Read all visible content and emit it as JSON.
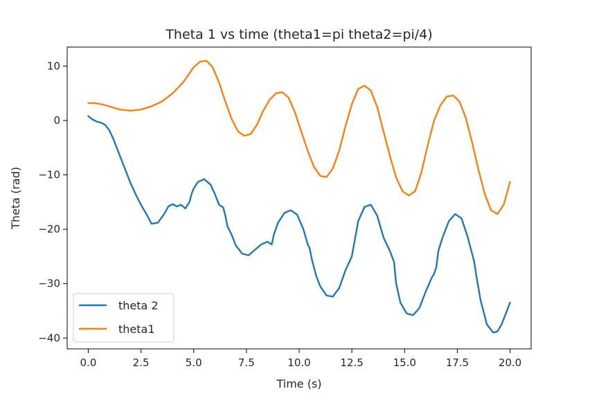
{
  "chart_data": {
    "type": "line",
    "title": "Theta 1 vs time (theta1=pi theta2=pi/4)",
    "xlabel": "Time (s)",
    "ylabel": "Theta  (rad)",
    "xlim": [
      -1.0,
      21.0
    ],
    "ylim": [
      -42.0,
      13.5
    ],
    "xticks": [
      0.0,
      2.5,
      5.0,
      7.5,
      10.0,
      12.5,
      15.0,
      17.5,
      20.0
    ],
    "xtick_labels": [
      "0.0",
      "2.5",
      "5.0",
      "7.5",
      "10.0",
      "12.5",
      "15.0",
      "17.5",
      "20.0"
    ],
    "yticks": [
      10,
      0,
      -10,
      -20,
      -30,
      -40
    ],
    "ytick_labels": [
      "10",
      "0",
      "−10",
      "−20",
      "−30",
      "−40"
    ],
    "grid": false,
    "legend_position": "lower-left",
    "series": [
      {
        "name": "theta 2",
        "color": "#1f77b4",
        "x": [
          0.0,
          0.2,
          0.4,
          0.6,
          0.8,
          1.0,
          1.2,
          1.5,
          1.8,
          2.0,
          2.3,
          2.5,
          2.8,
          3.0,
          3.3,
          3.6,
          3.8,
          4.0,
          4.2,
          4.4,
          4.6,
          4.8,
          4.9,
          5.0,
          5.2,
          5.5,
          5.8,
          6.0,
          6.2,
          6.4,
          6.5,
          6.6,
          6.8,
          7.0,
          7.3,
          7.6,
          7.9,
          8.2,
          8.5,
          8.7,
          8.8,
          9.0,
          9.3,
          9.6,
          9.9,
          10.2,
          10.4,
          10.5,
          10.6,
          10.8,
          11.0,
          11.3,
          11.6,
          11.9,
          12.2,
          12.5,
          12.6,
          12.8,
          13.1,
          13.4,
          13.7,
          14.0,
          14.3,
          14.5,
          14.6,
          14.8,
          15.1,
          15.4,
          15.7,
          16.0,
          16.3,
          16.4,
          16.5,
          16.6,
          16.8,
          17.1,
          17.4,
          17.7,
          18.0,
          18.3,
          18.4,
          18.6,
          18.9,
          19.2,
          19.4,
          19.6,
          19.8,
          20.0
        ],
        "values": [
          0.8,
          0.2,
          -0.2,
          -0.4,
          -0.8,
          -1.8,
          -3.5,
          -6.5,
          -9.5,
          -11.5,
          -14.0,
          -15.5,
          -17.5,
          -19.0,
          -18.8,
          -17.2,
          -15.8,
          -15.4,
          -15.8,
          -15.5,
          -16.2,
          -15.0,
          -13.5,
          -12.5,
          -11.3,
          -10.8,
          -11.8,
          -13.5,
          -15.5,
          -16.0,
          -17.5,
          -19.5,
          -21.0,
          -23.0,
          -24.5,
          -24.8,
          -23.8,
          -22.8,
          -22.3,
          -22.8,
          -21.0,
          -18.8,
          -17.0,
          -16.5,
          -17.3,
          -20.0,
          -22.7,
          -23.5,
          -25.5,
          -28.5,
          -30.5,
          -32.2,
          -32.4,
          -30.8,
          -27.5,
          -25.0,
          -22.8,
          -18.5,
          -15.9,
          -15.5,
          -17.5,
          -21.5,
          -24.0,
          -26.0,
          -30.0,
          -33.5,
          -35.5,
          -35.8,
          -34.5,
          -31.5,
          -28.8,
          -28.2,
          -27.0,
          -24.0,
          -21.5,
          -18.5,
          -17.2,
          -18.0,
          -21.5,
          -26.0,
          -28.5,
          -33.0,
          -37.5,
          -39.0,
          -38.8,
          -37.5,
          -35.5,
          -33.5
        ]
      },
      {
        "name": "theta1",
        "color": "#ff7f0e",
        "x": [
          0.0,
          0.3,
          0.6,
          1.0,
          1.5,
          2.0,
          2.5,
          3.0,
          3.5,
          4.0,
          4.5,
          5.0,
          5.3,
          5.6,
          5.9,
          6.2,
          6.5,
          6.8,
          7.1,
          7.4,
          7.7,
          8.0,
          8.3,
          8.6,
          8.9,
          9.2,
          9.5,
          9.8,
          10.1,
          10.4,
          10.7,
          11.0,
          11.3,
          11.6,
          11.9,
          12.2,
          12.5,
          12.8,
          13.1,
          13.4,
          13.7,
          14.0,
          14.3,
          14.6,
          14.9,
          15.2,
          15.5,
          15.8,
          16.1,
          16.4,
          16.7,
          17.0,
          17.3,
          17.6,
          17.9,
          18.2,
          18.5,
          18.8,
          19.1,
          19.4,
          19.7,
          20.0
        ],
        "values": [
          3.2,
          3.2,
          3.0,
          2.6,
          2.0,
          1.8,
          2.0,
          2.6,
          3.5,
          5.0,
          7.0,
          9.8,
          10.8,
          11.0,
          9.8,
          7.0,
          3.5,
          0.3,
          -2.0,
          -2.8,
          -2.5,
          -0.8,
          1.8,
          3.8,
          5.0,
          5.2,
          4.2,
          1.5,
          -2.0,
          -5.5,
          -8.5,
          -10.2,
          -10.4,
          -8.8,
          -5.5,
          -1.0,
          3.0,
          5.8,
          6.4,
          5.5,
          2.5,
          -2.0,
          -6.5,
          -10.5,
          -13.0,
          -13.8,
          -13.0,
          -9.5,
          -4.5,
          0.0,
          2.8,
          4.4,
          4.6,
          3.5,
          0.5,
          -4.0,
          -9.0,
          -13.5,
          -16.5,
          -17.2,
          -15.5,
          -11.3
        ]
      }
    ]
  }
}
